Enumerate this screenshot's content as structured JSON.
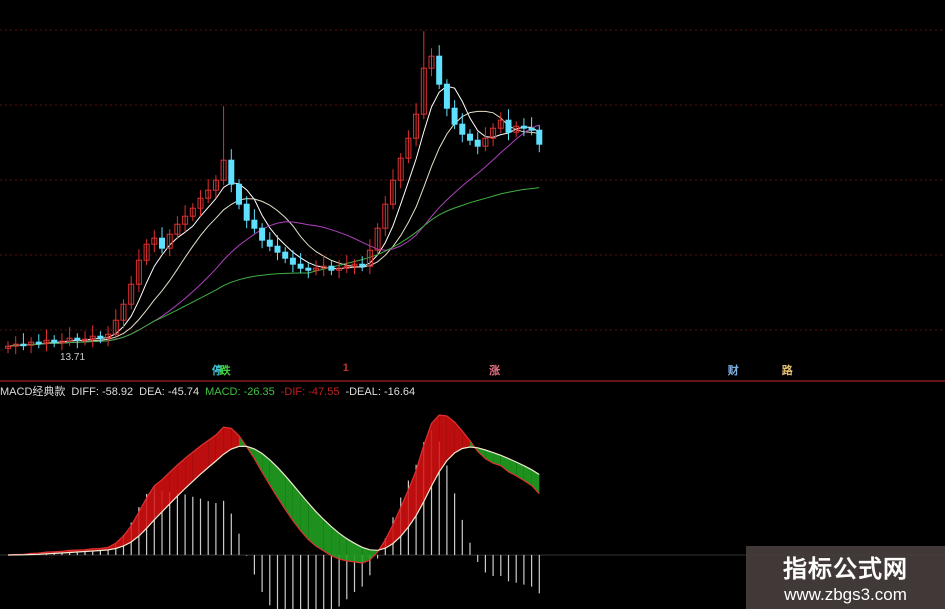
{
  "chart_data": {
    "type": "candlestick",
    "price_label": "13.71",
    "closes": [
      13.9,
      14.0,
      13.95,
      14.1,
      14.05,
      14.2,
      14.1,
      14.15,
      14.3,
      14.2,
      14.25,
      14.4,
      14.3,
      14.5,
      15.2,
      16.0,
      17.0,
      18.2,
      19.0,
      19.3,
      18.8,
      19.5,
      20.0,
      20.4,
      20.8,
      21.3,
      21.7,
      22.2,
      23.2,
      22.0,
      21.0,
      20.2,
      19.8,
      19.2,
      18.9,
      18.6,
      18.3,
      18.0,
      17.8,
      17.7,
      17.8,
      17.9,
      17.7,
      17.8,
      17.9,
      18.0,
      17.9,
      18.7,
      19.8,
      21.0,
      22.2,
      23.3,
      24.3,
      25.5,
      27.8,
      28.4,
      27.0,
      25.8,
      25.0,
      24.5,
      24.2,
      23.9,
      24.3,
      24.8,
      25.2,
      24.6,
      24.9,
      24.8,
      24.7,
      24.0
    ],
    "moving_averages": [
      {
        "period": 5,
        "color": "#ffffff"
      },
      {
        "period": 10,
        "color": "#e6e0c8"
      },
      {
        "period": 20,
        "color": "#b040c0"
      },
      {
        "period": 40,
        "color": "#40b040"
      }
    ],
    "up_color": "#e03030",
    "down_color": "#60e0ff",
    "signals": [
      {
        "text": "停",
        "color": "#40c0d0",
        "index": 27
      },
      {
        "text": "跌",
        "color": "#40d040",
        "index": 28
      },
      {
        "text": "1",
        "color": "#c03030",
        "index": 44
      },
      {
        "text": "涨",
        "color": "#e07080",
        "index": 63
      },
      {
        "text": "财",
        "color": "#80b0e0",
        "index": 94
      },
      {
        "text": "路",
        "color": "#e0c070",
        "index": 101
      }
    ],
    "indicator": {
      "name": "MACD经典款",
      "diff_label": "DIFF: -58.92",
      "dea_label": "DEA: -45.74",
      "macd_label": "MACD: -26.35",
      "dif_label": "-DIF: -47.55",
      "deal_label": "-DEAL: -16.64",
      "diff_color": "#e03030",
      "dea_color": "#f0e8d0",
      "rise_fill": "#d01010",
      "fall_fill": "#20a020"
    }
  },
  "watermark": {
    "title": "指标公式网",
    "url": "www.zbgs3.com"
  }
}
